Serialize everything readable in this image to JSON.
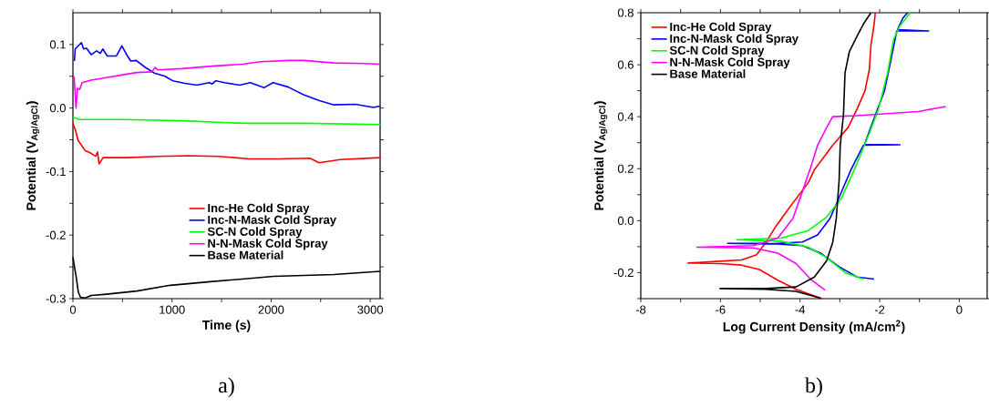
{
  "chart_data": [
    {
      "type": "line",
      "xlabel": "Time (s)",
      "ylabel": "Potential (V$_{Ag/AgCl}$)",
      "xlim": [
        0,
        3100
      ],
      "ylim": [
        -0.3,
        0.15
      ],
      "xticks": [
        0,
        {
          "value": 500,
          "label": null
        },
        1000,
        {
          "value": 1500,
          "label": null
        },
        2000,
        {
          "value": 2500,
          "label": null
        },
        3000
      ],
      "yticks": [
        -0.3,
        {
          "value": -0.25,
          "label": null
        },
        -0.2,
        {
          "value": -0.15,
          "label": null
        },
        -0.1,
        {
          "value": -0.05,
          "label": null
        },
        {
          "value": 0,
          "label": "0.0"
        },
        {
          "value": 0.05,
          "label": null
        },
        0.1
      ],
      "legend": "bottom",
      "annotations": [
        "a)"
      ],
      "series": [
        {
          "name": "Inc-He Cold Spray",
          "color": "#ff0000",
          "x": [
            0,
            28,
            52,
            80,
            123,
            169,
            230,
            248,
            264,
            304,
            549,
            856,
            1163,
            1470,
            1777,
            2084,
            2392,
            2483,
            2699,
            3100
          ],
          "values": [
            -0.024,
            -0.036,
            -0.051,
            -0.057,
            -0.067,
            -0.07,
            -0.076,
            -0.069,
            -0.088,
            -0.078,
            -0.078,
            -0.076,
            -0.075,
            -0.076,
            -0.08,
            -0.08,
            -0.079,
            -0.086,
            -0.081,
            -0.078
          ]
        },
        {
          "name": "Inc-N-Mask Cold Spray",
          "color": "#0000ff",
          "x": [
            15,
            23,
            86,
            107,
            138,
            184,
            239,
            276,
            301,
            347,
            439,
            494,
            546,
            583,
            638,
            730,
            822,
            929,
            1006,
            1129,
            1252,
            1375,
            1406,
            1443,
            1529,
            1682,
            1790,
            1928,
            2020,
            2173,
            2327,
            2480,
            2634,
            2849,
            3033,
            3100
          ],
          "values": [
            0.074,
            0.093,
            0.103,
            0.093,
            0.094,
            0.084,
            0.09,
            0.086,
            0.093,
            0.082,
            0.082,
            0.098,
            0.083,
            0.074,
            0.075,
            0.064,
            0.055,
            0.05,
            0.043,
            0.039,
            0.036,
            0.04,
            0.038,
            0.043,
            0.04,
            0.036,
            0.04,
            0.032,
            0.04,
            0.033,
            0.021,
            0.012,
            0.005,
            0.006,
            0.001,
            0.003
          ]
        },
        {
          "name": "SC-N Cold Spray",
          "color": "#00ff00",
          "x": [
            0,
            61,
            490,
            1099,
            1713,
            2327,
            3100
          ],
          "values": [
            -0.014,
            -0.018,
            -0.018,
            -0.02,
            -0.024,
            -0.024,
            -0.026
          ]
        },
        {
          "name": "N-N-Mask Cold Spray",
          "color": "#ff00ff",
          "x": [
            12,
            31,
            46,
            67,
            92,
            184,
            338,
            491,
            645,
            798,
            829,
            859,
            1099,
            1406,
            1713,
            1897,
            2173,
            2327,
            2634,
            2941,
            3100
          ],
          "values": [
            0.05,
            0.0,
            0.031,
            0.029,
            0.04,
            0.044,
            0.048,
            0.052,
            0.056,
            0.057,
            0.064,
            0.06,
            0.062,
            0.066,
            0.069,
            0.073,
            0.075,
            0.075,
            0.071,
            0.07,
            0.069
          ]
        },
        {
          "name": "Base Material",
          "color": "#000000",
          "x": [
            0,
            31,
            55,
            77,
            123,
            184,
            338,
            645,
            982,
            1412,
            2026,
            2634,
            3100
          ],
          "values": [
            -0.235,
            -0.264,
            -0.29,
            -0.298,
            -0.299,
            -0.295,
            -0.293,
            -0.288,
            -0.279,
            -0.273,
            -0.265,
            -0.262,
            -0.257
          ]
        }
      ]
    },
    {
      "type": "line",
      "xlabel": "Log Current Density (mA/cm$^{2}$)",
      "ylabel": "Potential (V$_{Ag/AgCl}$)",
      "xlim": [
        -8,
        0.7
      ],
      "ylim": [
        -0.3,
        0.8
      ],
      "xticks": [
        -8,
        {
          "value": -7,
          "label": null
        },
        -6,
        {
          "value": -5,
          "label": null
        },
        -4,
        {
          "value": -3,
          "label": null
        },
        -2,
        {
          "value": -1,
          "label": null
        },
        0
      ],
      "yticks": [
        {
          "value": -0.3,
          "label": null
        },
        -0.2,
        {
          "value": -0.1,
          "label": null
        },
        {
          "value": 0,
          "label": "0.0"
        },
        {
          "value": 0.1,
          "label": null
        },
        0.2,
        {
          "value": 0.3,
          "label": null
        },
        0.4,
        {
          "value": 0.5,
          "label": null
        },
        0.6,
        {
          "value": 0.7,
          "label": null
        },
        0.8
      ],
      "legend": "top left",
      "annotations": [
        "b)"
      ],
      "series": [
        {
          "name": "Inc-He Cold Spray",
          "color": "#ff0000",
          "x": [
            -3.45,
            -4.1,
            -4.56,
            -5.02,
            -5.47,
            -6.01,
            -6.81,
            -6.01,
            -5.47,
            -5.09,
            -4.86,
            -4.63,
            -4.25,
            -3.79,
            -3.64,
            -3.18,
            -2.79,
            -2.57,
            -2.37,
            -2.26,
            -2.22,
            -2.14,
            -2.11
          ],
          "values": [
            -0.3,
            -0.264,
            -0.229,
            -0.188,
            -0.171,
            -0.165,
            -0.163,
            -0.156,
            -0.151,
            -0.131,
            -0.084,
            -0.027,
            0.054,
            0.147,
            0.196,
            0.29,
            0.359,
            0.429,
            0.499,
            0.581,
            0.674,
            0.756,
            0.8
          ]
        },
        {
          "name": "Inc-N-Mask Cold Spray",
          "color": "#0000ff",
          "x": [
            -2.14,
            -2.57,
            -3.02,
            -3.48,
            -3.94,
            -4.86,
            -5.82,
            -4.86,
            -3.94,
            -3.56,
            -3.25,
            -3.02,
            -2.72,
            -2.41,
            -1.49,
            -2.38,
            -2.11,
            -1.88,
            -1.72,
            -1.57,
            -0.77,
            -1.55,
            -1.42,
            -1.3
          ],
          "values": [
            -0.225,
            -0.217,
            -0.177,
            -0.125,
            -0.096,
            -0.087,
            -0.087,
            -0.09,
            -0.082,
            -0.055,
            0.008,
            0.089,
            0.196,
            0.29,
            0.292,
            0.294,
            0.406,
            0.499,
            0.616,
            0.73,
            0.73,
            0.735,
            0.779,
            0.8
          ]
        },
        {
          "name": "SC-N Cold Spray",
          "color": "#00ff00",
          "x": [
            -2.41,
            -2.87,
            -3.33,
            -3.79,
            -4.48,
            -5.59,
            -4.48,
            -3.79,
            -3.33,
            -2.95,
            -2.68,
            -2.57,
            -2.26,
            -2.03,
            -1.8,
            -1.65,
            -1.49,
            -1.23
          ],
          "values": [
            -0.225,
            -0.2,
            -0.142,
            -0.102,
            -0.079,
            -0.073,
            -0.067,
            -0.038,
            0.014,
            0.089,
            0.182,
            0.22,
            0.336,
            0.429,
            0.569,
            0.697,
            0.75,
            0.8
          ]
        },
        {
          "name": "N-N-Mask Cold Spray",
          "color": "#ff00ff",
          "x": [
            -3.37,
            -3.71,
            -4.1,
            -4.56,
            -5.17,
            -6.59,
            -5.17,
            -4.56,
            -4.18,
            -3.94,
            -3.79,
            -3.75,
            -3.56,
            -3.33,
            -3.18,
            -2.57,
            -1.8,
            -1.03,
            -0.34
          ],
          "values": [
            -0.267,
            -0.229,
            -0.165,
            -0.125,
            -0.105,
            -0.102,
            -0.096,
            -0.067,
            0.008,
            0.112,
            0.181,
            0.196,
            0.29,
            0.359,
            0.4,
            0.404,
            0.412,
            0.42,
            0.439
          ]
        },
        {
          "name": "Base Material",
          "color": "#000000",
          "x": [
            -3.48,
            -4.1,
            -4.86,
            -6.01,
            -4.86,
            -4.1,
            -3.64,
            -3.33,
            -3.18,
            -3.09,
            -3.04,
            -3.02,
            -2.99,
            -2.91,
            -2.87,
            -2.76,
            -2.57,
            -2.41,
            -2.22
          ],
          "values": [
            -0.298,
            -0.272,
            -0.264,
            -0.261,
            -0.261,
            -0.255,
            -0.217,
            -0.154,
            -0.084,
            0.008,
            0.112,
            0.15,
            0.29,
            0.406,
            0.569,
            0.651,
            0.709,
            0.756,
            0.8
          ]
        }
      ]
    }
  ]
}
